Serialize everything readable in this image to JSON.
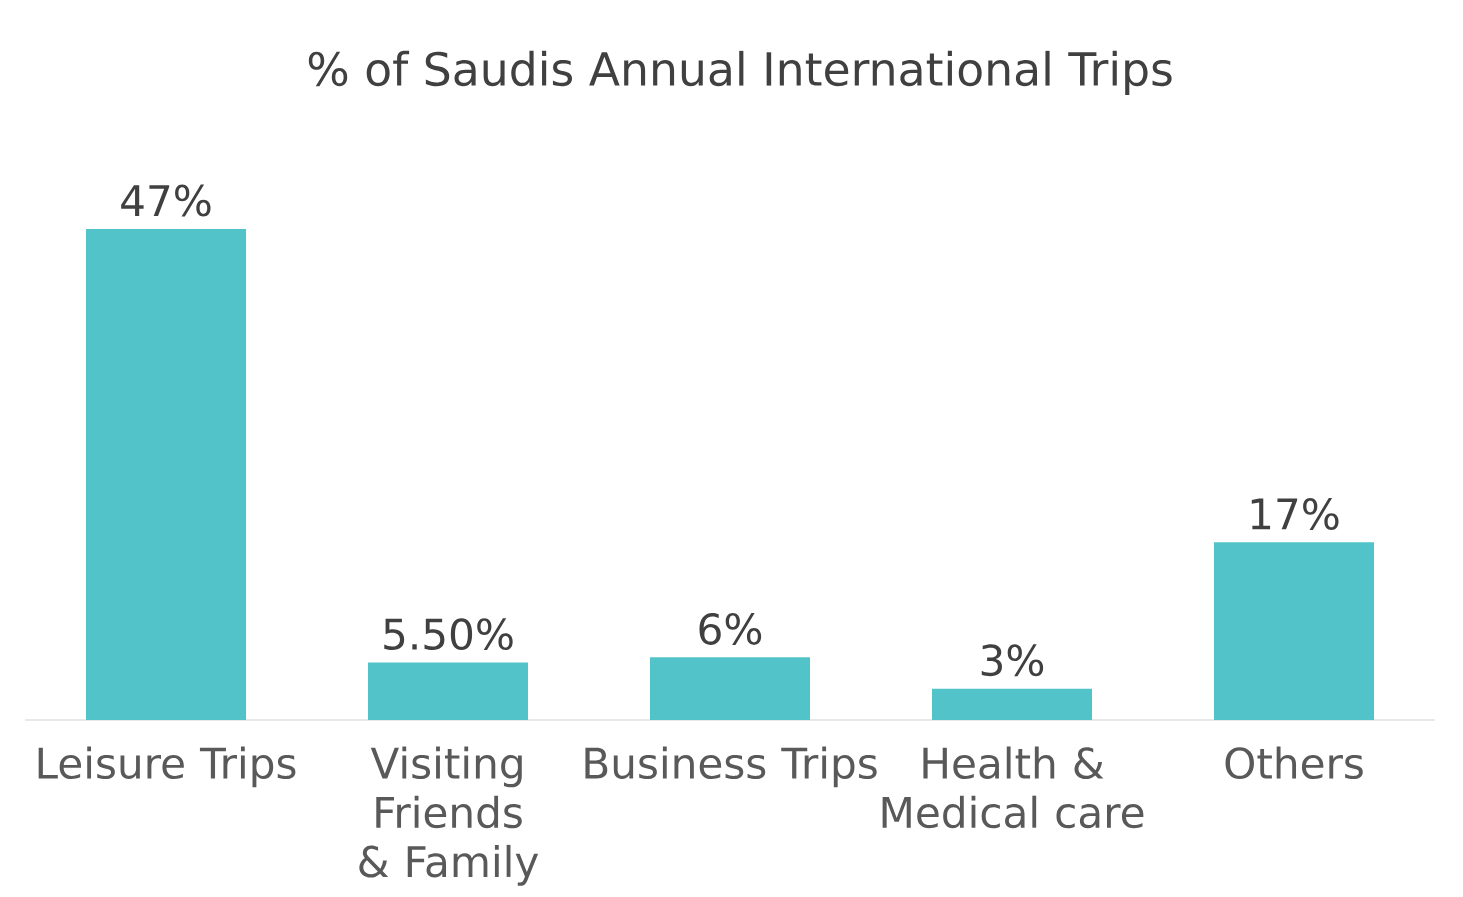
{
  "chart_data": {
    "type": "bar",
    "title": "% of Saudis Annual International Trips",
    "categories": [
      "Leisure Trips",
      "Visiting Friends & Family",
      "Business Trips",
      "Health & Medical care",
      "Others"
    ],
    "values": [
      47,
      5.5,
      6,
      3,
      17
    ],
    "value_labels": [
      "47%",
      "5.50%",
      "6%",
      "3%",
      "17%"
    ],
    "color": "#52c4c9"
  }
}
